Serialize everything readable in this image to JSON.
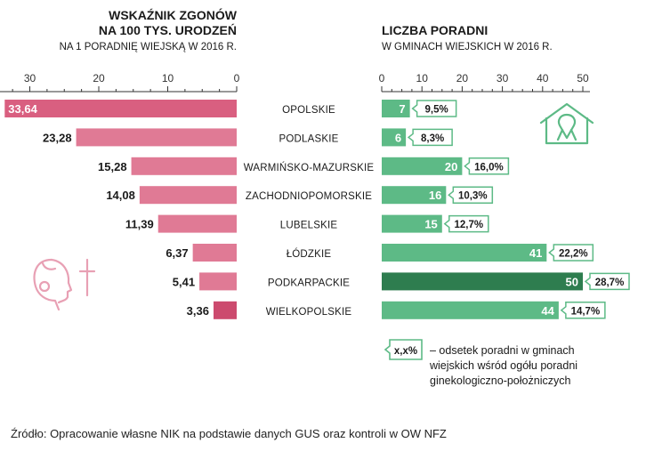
{
  "colors": {
    "left_bar": "#e07a95",
    "left_bar_top": "#d95f80",
    "left_bar_bottom": "#cc4a6e",
    "right_bar": "#5dba86",
    "right_bar_dark": "#2e7d4f",
    "callout_border": "#5dba86",
    "icon_pink": "#e8a0b4",
    "icon_green": "#5dba86"
  },
  "icons": {
    "left": "child-head-with-cross-icon",
    "right": "house-with-ribbon-icon"
  },
  "source": "Źródło: Opracowanie własne NIK na podstawie danych GUS oraz kontroli w OW NFZ",
  "chart_data": [
    {
      "type": "bar",
      "orientation": "horizontal",
      "direction": "right-to-left",
      "title_lines": [
        "WSKAŹNIK ZGONÓW",
        "NA 100 TYS. URODZEŃ"
      ],
      "subtitle": "NA 1 PORADNIĘ WIEJSKĄ W 2016 R.",
      "xlim": [
        0,
        35
      ],
      "ticks": [
        30,
        20,
        10,
        0
      ],
      "categories": [
        "OPOLSKIE",
        "PODLASKIE",
        "WARMIŃSKO-MAZURSKIE",
        "ZACHODNIOPOMORSKIE",
        "LUBELSKIE",
        "ŁÓDZKIE",
        "PODKARPACKIE",
        "WIELKOPOLSKIE"
      ],
      "values": [
        33.64,
        23.28,
        15.28,
        14.08,
        11.39,
        6.37,
        5.41,
        3.36
      ],
      "labels": [
        "33,64",
        "23,28",
        "15,28",
        "14,08",
        "11,39",
        "6,37",
        "5,41",
        "3,36"
      ]
    },
    {
      "type": "bar",
      "orientation": "horizontal",
      "title": "LICZBA PORADNI",
      "subtitle": "W GMINACH WIEJSKICH W 2016 R.",
      "xlim": [
        0,
        50
      ],
      "ticks": [
        0,
        10,
        20,
        30,
        40,
        50
      ],
      "categories": [
        "OPOLSKIE",
        "PODLASKIE",
        "WARMIŃSKO-MAZURSKIE",
        "ZACHODNIOPOMORSKIE",
        "LUBELSKIE",
        "ŁÓDZKIE",
        "PODKARPACKIE",
        "WIELKOPOLSKIE"
      ],
      "values": [
        7,
        6,
        20,
        16,
        15,
        41,
        50,
        44
      ],
      "labels": [
        "7",
        "6",
        "20",
        "16",
        "15",
        "41",
        "50",
        "44"
      ],
      "percent_labels": [
        "9,5%",
        "8,3%",
        "16,0%",
        "10,3%",
        "12,7%",
        "22,2%",
        "28,7%",
        "14,7%"
      ],
      "legend": {
        "symbol": "x,x%",
        "lines": [
          "– odsetek poradni w gminach",
          "wiejskich wśród ogółu poradni",
          "ginekologiczno-położniczych"
        ]
      }
    }
  ]
}
